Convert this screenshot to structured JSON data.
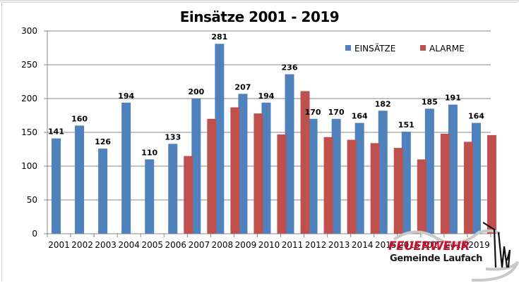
{
  "chart_data": {
    "type": "bar",
    "title": "Einsätze 2001 - 2019",
    "xlabel": "",
    "ylabel": "",
    "ylim": [
      0,
      300
    ],
    "yticks": [
      0,
      50,
      100,
      150,
      200,
      250,
      300
    ],
    "grid": true,
    "legend_position": "top-right",
    "categories": [
      "2001",
      "2002",
      "2003",
      "2004",
      "2005",
      "2006",
      "2007",
      "2008",
      "2009",
      "2010",
      "2011",
      "2012",
      "2013",
      "2014",
      "2015",
      "2016",
      "2017",
      "2018",
      "2019"
    ],
    "series": [
      {
        "name": "EINSÄTZE",
        "color": "#4f81bd",
        "values": [
          141,
          160,
          126,
          194,
          110,
          133,
          200,
          281,
          207,
          194,
          236,
          170,
          170,
          164,
          182,
          151,
          185,
          191,
          164
        ],
        "labels_shown": true
      },
      {
        "name": "ALARME",
        "color": "#c0504d",
        "values": [
          null,
          null,
          null,
          null,
          null,
          115,
          170,
          187,
          178,
          147,
          211,
          143,
          139,
          134,
          127,
          110,
          148,
          136,
          146
        ],
        "labels_shown": false
      }
    ]
  },
  "logo": {
    "line1": "FEUERWEHR",
    "line2": "Gemeinde Laufach"
  }
}
